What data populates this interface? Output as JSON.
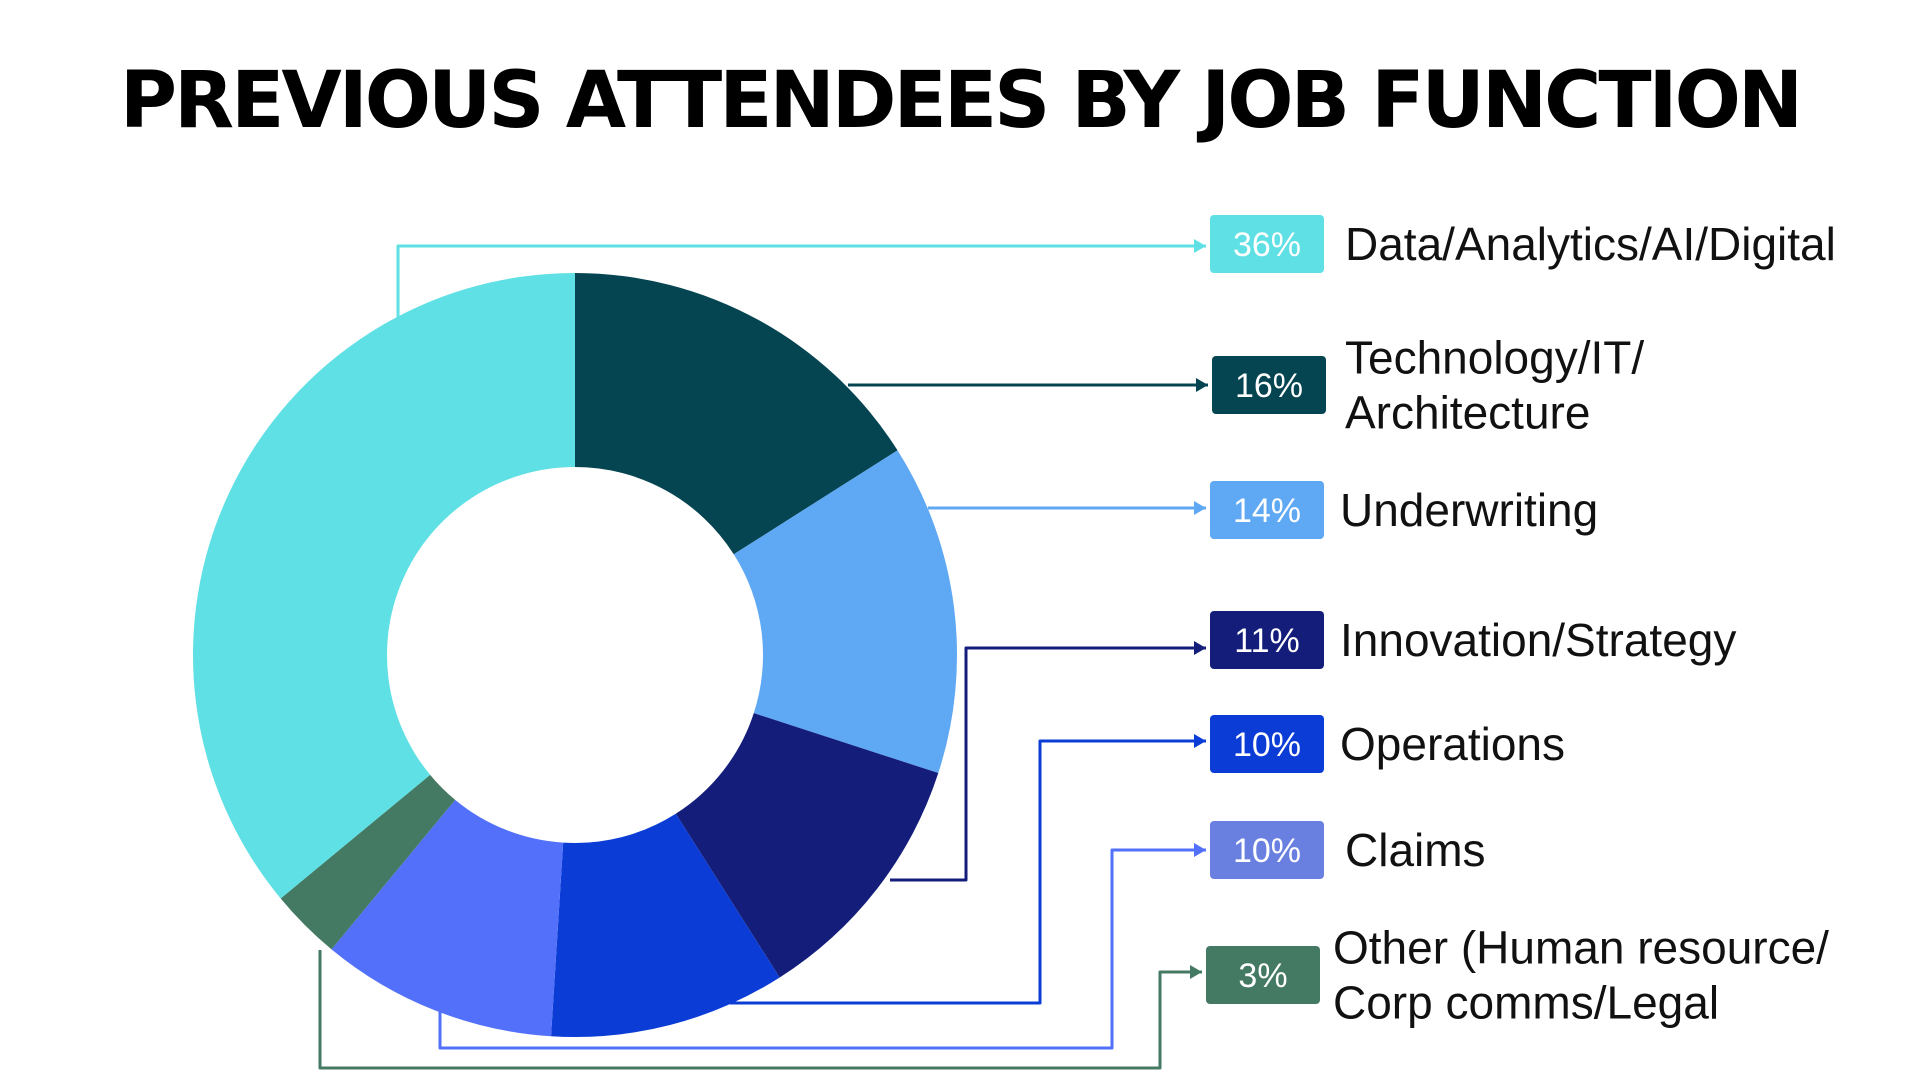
{
  "chart_data": {
    "type": "pie",
    "title": "PREVIOUS ATTENDEES BY JOB FUNCTION",
    "slices": [
      {
        "name": "Data/Analytics/AI/Digital",
        "value": 36,
        "label": "36%",
        "color": "#5EE0E5",
        "lines": [
          "Data/Analytics/AI/Digital"
        ]
      },
      {
        "name": "Technology/IT/Architecture",
        "value": 16,
        "label": "16%",
        "color": "#054552",
        "lines": [
          "Technology/IT/",
          "Architecture"
        ]
      },
      {
        "name": "Underwriting",
        "value": 14,
        "label": "14%",
        "color": "#5EA8F4",
        "lines": [
          "Underwriting"
        ]
      },
      {
        "name": "Innovation/Strategy",
        "value": 11,
        "label": "11%",
        "color": "#141E7A",
        "lines": [
          "Innovation/Strategy"
        ]
      },
      {
        "name": "Operations",
        "value": 10,
        "label": "10%",
        "color": "#0B3DD6",
        "lines": [
          "Operations"
        ]
      },
      {
        "name": "Claims",
        "value": 10,
        "label": "10%",
        "color": "#5270FA",
        "badge_color": "#6A80E0",
        "lines": [
          "Claims"
        ]
      },
      {
        "name": "Other (Human resource/Corp comms/Legal",
        "value": 3,
        "label": "3%",
        "color": "#447964",
        "lines": [
          "Other (Human resource/",
          "Corp comms/Legal"
        ]
      }
    ]
  }
}
